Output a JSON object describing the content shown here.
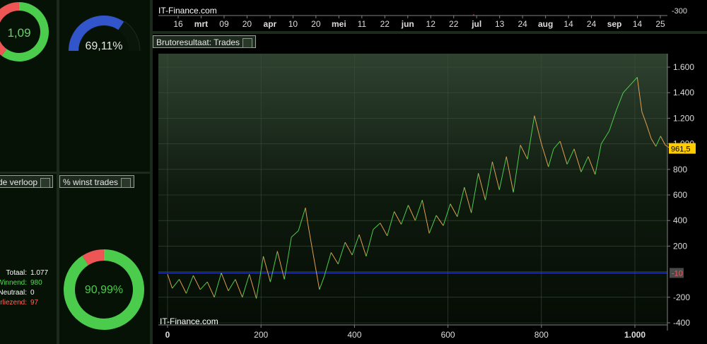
{
  "gauges": {
    "profit_factor": {
      "value_text": "1,09",
      "green_fraction": 0.6
    },
    "gauge_pct": {
      "value_text": "69,11%",
      "fraction": 0.6911
    },
    "win_pct": {
      "value_text": "90,99%",
      "fraction": 0.9099
    }
  },
  "panels": {
    "trades_verloop": {
      "tab_label": "de verloop"
    },
    "win_trades": {
      "tab_label": "% winst trades"
    },
    "bruto": {
      "tab_label": "Brutoresultaat: Trades"
    }
  },
  "stats": [
    {
      "label": "Totaal:",
      "value": "1.077",
      "color": "#ffffff"
    },
    {
      "label": "Winnend:",
      "value": "980",
      "color": "#55dd55"
    },
    {
      "label": "Neutraal:",
      "value": "0",
      "color": "#ffffff"
    },
    {
      "label": "Verliezend:",
      "value": "97",
      "color": "#ff6655"
    }
  ],
  "top_chart": {
    "watermark": "IT-Finance.com",
    "y_tick": "-300",
    "x_ticks": [
      {
        "label": "16",
        "bold": false
      },
      {
        "label": "mrt",
        "bold": true
      },
      {
        "label": "09",
        "bold": false
      },
      {
        "label": "20",
        "bold": false
      },
      {
        "label": "apr",
        "bold": true
      },
      {
        "label": "10",
        "bold": false
      },
      {
        "label": "20",
        "bold": false
      },
      {
        "label": "mei",
        "bold": true
      },
      {
        "label": "11",
        "bold": false
      },
      {
        "label": "22",
        "bold": false
      },
      {
        "label": "jun",
        "bold": true
      },
      {
        "label": "12",
        "bold": false
      },
      {
        "label": "22",
        "bold": false
      },
      {
        "label": "jul",
        "bold": true
      },
      {
        "label": "13",
        "bold": false
      },
      {
        "label": "24",
        "bold": false
      },
      {
        "label": "aug",
        "bold": true
      },
      {
        "label": "14",
        "bold": false
      },
      {
        "label": "24",
        "bold": false
      },
      {
        "label": "sep",
        "bold": true
      },
      {
        "label": "14",
        "bold": false
      },
      {
        "label": "25",
        "bold": false
      }
    ]
  },
  "colors": {
    "green": "#4ccc4c",
    "red": "#ee5555",
    "blue": "#3355cc",
    "blue_line": "#3344ee",
    "label_yellow": "#ffcc00"
  },
  "chart_data": {
    "type": "line",
    "title": "Brutoresultaat: Trades",
    "watermark": "IT-Finance.com",
    "xlim": [
      0,
      1135
    ],
    "ylim": [
      -420,
      1720
    ],
    "x_ticks": [
      0,
      200,
      400,
      600,
      800,
      1000
    ],
    "x_tick_labels": [
      "0",
      "200",
      "400",
      "600",
      "800",
      "1.000"
    ],
    "y_ticks": [
      1600,
      1400,
      1200,
      1000,
      800,
      600,
      400,
      200,
      0,
      -200,
      -400
    ],
    "y_tick_labels": [
      "1.600",
      "1.400",
      "1.200",
      "1.000",
      "800",
      "600",
      "400",
      "200",
      "0",
      "-200",
      "-400"
    ],
    "last_value_label": "961,5",
    "reference_label": "-10",
    "reference_value": -10,
    "grid": true,
    "x": [
      0,
      10,
      25,
      40,
      55,
      70,
      85,
      100,
      115,
      130,
      145,
      160,
      175,
      190,
      205,
      220,
      235,
      250,
      265,
      280,
      295,
      300,
      310,
      325,
      335,
      350,
      365,
      380,
      395,
      410,
      425,
      440,
      455,
      470,
      485,
      500,
      515,
      530,
      545,
      560,
      575,
      590,
      605,
      620,
      635,
      650,
      665,
      680,
      695,
      710,
      725,
      740,
      755,
      770,
      785,
      800,
      815,
      826,
      840,
      855,
      870,
      885,
      900,
      915,
      928,
      945,
      960,
      975,
      990,
      1005,
      1015,
      1025,
      1035,
      1045,
      1055,
      1065,
      1077
    ],
    "y": [
      -20,
      -130,
      -60,
      -170,
      -30,
      -140,
      -80,
      -200,
      -10,
      -150,
      -60,
      -200,
      -20,
      -210,
      120,
      -80,
      160,
      -60,
      270,
      320,
      500,
      380,
      170,
      -140,
      -40,
      150,
      60,
      230,
      130,
      290,
      120,
      330,
      380,
      280,
      470,
      370,
      520,
      400,
      560,
      300,
      440,
      360,
      530,
      430,
      660,
      460,
      770,
      560,
      860,
      640,
      900,
      620,
      990,
      880,
      1220,
      1000,
      820,
      960,
      1020,
      840,
      960,
      780,
      900,
      760,
      1000,
      1100,
      1260,
      1400,
      1460,
      1520,
      1250,
      1150,
      1040,
      980,
      1060,
      990,
      961.5
    ]
  }
}
